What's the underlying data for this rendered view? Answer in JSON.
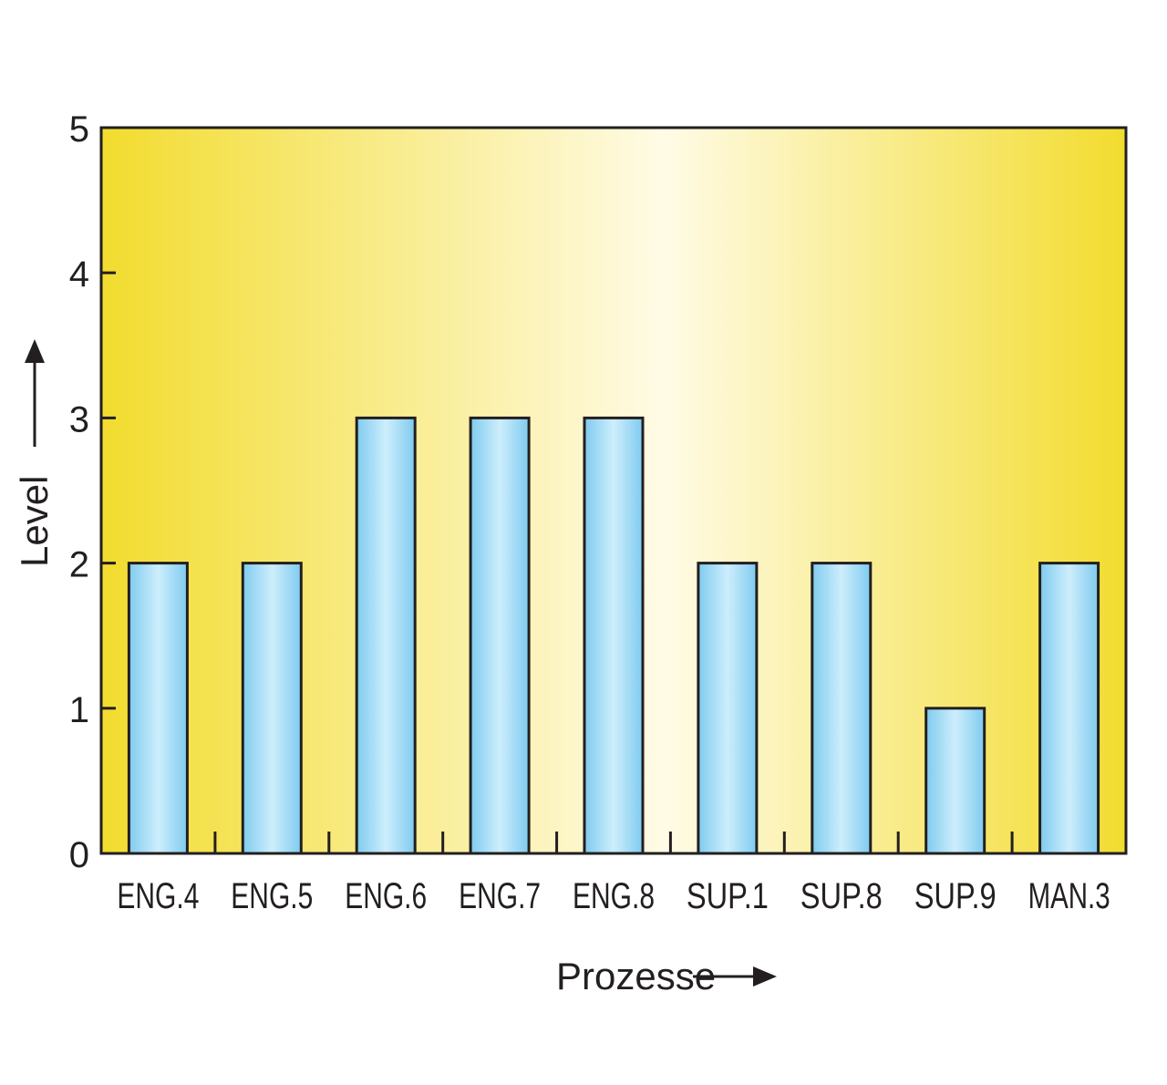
{
  "chart_data": {
    "type": "bar",
    "title": "",
    "xlabel": "Prozesse",
    "ylabel": "Level",
    "categories": [
      "ENG.4",
      "ENG.5",
      "ENG.6",
      "ENG.7",
      "ENG.8",
      "SUP.1",
      "SUP.8",
      "SUP.9",
      "MAN.3"
    ],
    "values": [
      2,
      2,
      3,
      3,
      3,
      2,
      2,
      1,
      2
    ],
    "ylim": [
      0,
      5
    ],
    "yticks": [
      "0",
      "1",
      "2",
      "3",
      "4",
      "5"
    ],
    "grid": false,
    "legend": "none"
  },
  "colors": {
    "background_edge": "#f2dc2e",
    "background_center": "#fffbe6",
    "bar_edge": "#7fcbef",
    "bar_center": "#cdeefc",
    "outline": "#231f20"
  }
}
